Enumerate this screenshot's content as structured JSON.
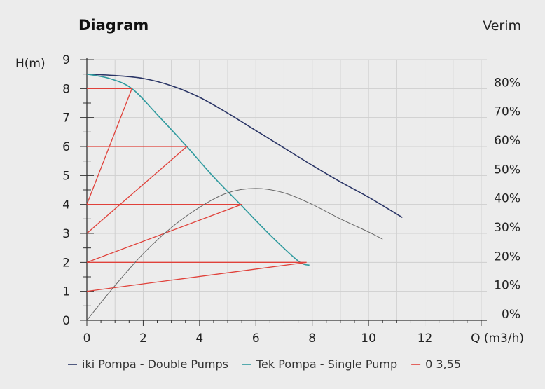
{
  "chart_data": {
    "type": "line",
    "title": "Diagram",
    "right_axis_title": "Verim",
    "ylabel": "H(m)",
    "xlabel": "Q (m3/h)",
    "xlim": [
      0,
      14.2
    ],
    "ylim": [
      0,
      9
    ],
    "y2lim": [
      0,
      90
    ],
    "x_ticks": [
      0,
      2,
      4,
      6,
      8,
      10,
      12
    ],
    "y_ticks": [
      0,
      1,
      2,
      3,
      4,
      5,
      6,
      7,
      8,
      9
    ],
    "y2_ticks": [
      "0%",
      "10%",
      "20%",
      "30%",
      "40%",
      "50%",
      "60%",
      "70%",
      "80%"
    ],
    "grid": true,
    "legend_position": "bottom",
    "series": [
      {
        "name": "iki Pompa - Double Pumps",
        "color": "#2a3566",
        "x": [
          0,
          1,
          2,
          3,
          4,
          5,
          6,
          7,
          8,
          9,
          10,
          11.2
        ],
        "y": [
          8.5,
          8.45,
          8.35,
          8.1,
          7.7,
          7.15,
          6.55,
          5.95,
          5.35,
          4.78,
          4.25,
          3.55
        ]
      },
      {
        "name": "Tek Pompa - Single Pump",
        "color": "#2f9a9e",
        "x": [
          0,
          0.8,
          1.6,
          2.5,
          3.5,
          4.5,
          5.5,
          6.5,
          7.5,
          7.9
        ],
        "y": [
          8.5,
          8.35,
          8.0,
          7.1,
          6.05,
          4.95,
          3.95,
          2.95,
          2.05,
          1.9
        ]
      },
      {
        "name": "0 3,55",
        "color": "#e0413a",
        "segments": [
          {
            "x": [
              0,
              1.6,
              0
            ],
            "y": [
              4,
              8,
              8
            ]
          },
          {
            "x": [
              0,
              3.55,
              0
            ],
            "y": [
              3,
              6,
              6
            ]
          },
          {
            "x": [
              0,
              5.5,
              0
            ],
            "y": [
              2,
              4,
              4
            ]
          },
          {
            "x": [
              0,
              7.8,
              0
            ],
            "y": [
              1,
              2,
              2
            ]
          }
        ]
      },
      {
        "color": "#666666",
        "axis": "right",
        "x": [
          0,
          1,
          2,
          3,
          4,
          5,
          6,
          7,
          8,
          9,
          10,
          10.5
        ],
        "y": [
          0,
          12,
          23,
          32,
          39,
          44,
          45.5,
          44,
          40,
          35,
          30.5,
          28
        ]
      }
    ]
  }
}
